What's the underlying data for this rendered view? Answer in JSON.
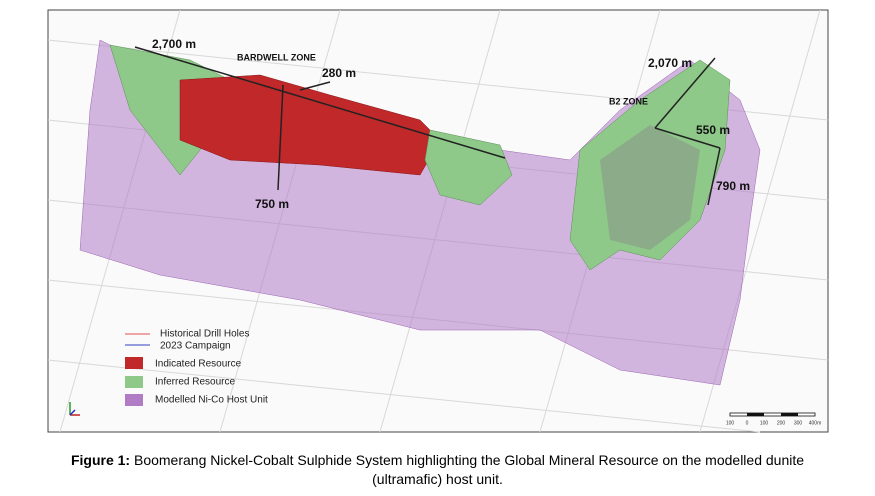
{
  "figure": {
    "labels": {
      "bardwell_length": "2,700 m",
      "bardwell_zone": "BARDWELL ZONE",
      "bardwell_width": "280 m",
      "bardwell_depth": "750 m",
      "b2_length": "2,070 m",
      "b2_zone": "B2 ZONE",
      "b2_width": "550 m",
      "b2_depth": "790 m"
    },
    "legend": [
      "Historical Drill Holes",
      "2023 Campaign",
      "Indicated  Resource",
      "Inferred  Resource",
      "Modelled Ni-Co Host Unit"
    ],
    "scale_bar": [
      "100",
      "0",
      "100",
      "200",
      "300",
      "400m"
    ]
  },
  "caption": {
    "label": "Figure 1:",
    "text": " Boomerang Nickel-Cobalt Sulphide System highlighting the Global Mineral Resource on the modelled dunite (ultramafic) host unit."
  }
}
